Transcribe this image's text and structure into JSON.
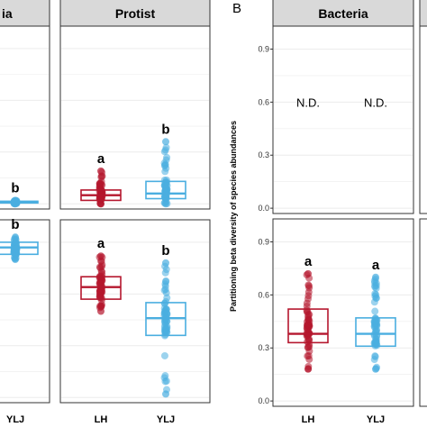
{
  "colors": {
    "LH": "#b5172e",
    "YLJ": "#4aaee0",
    "strip_fill": "#d9d9d9",
    "panel_border": "#333333",
    "grid": "#ececec"
  },
  "panel_letter": "B",
  "y_axis_title": "Partitioning beta diversity of species abundances",
  "not_detected_label": "N.D.",
  "chart_data": [
    {
      "type": "box",
      "facet": "ia",
      "strip_label": "ia",
      "row": "top",
      "groups": [
        {
          "name": "YLJ",
          "label": "YLJ",
          "q1": 0.005,
          "median": 0.01,
          "q3": 0.015,
          "min": 0.0,
          "max": 0.02,
          "sig": "b"
        }
      ]
    },
    {
      "type": "box",
      "facet": "ia",
      "row": "bottom",
      "groups": [
        {
          "name": "YLJ",
          "label": "YLJ",
          "q1": 0.83,
          "median": 0.87,
          "q3": 0.9,
          "min": 0.8,
          "max": 0.93,
          "sig": "b"
        }
      ]
    },
    {
      "type": "box",
      "facet": "Protist",
      "strip_label": "Protist",
      "row": "top",
      "groups": [
        {
          "name": "LH",
          "label": "LH",
          "q1": 0.02,
          "median": 0.05,
          "q3": 0.08,
          "min": 0.0,
          "max": 0.19,
          "sig": "a"
        },
        {
          "name": "YLJ",
          "label": "YLJ",
          "q1": 0.03,
          "median": 0.06,
          "q3": 0.13,
          "min": 0.0,
          "max": 0.36,
          "sig": "b"
        }
      ]
    },
    {
      "type": "box",
      "facet": "Protist",
      "row": "bottom",
      "groups": [
        {
          "name": "LH",
          "label": "LH",
          "q1": 0.57,
          "median": 0.64,
          "q3": 0.7,
          "min": 0.5,
          "max": 0.82,
          "sig": "a"
        },
        {
          "name": "YLJ",
          "label": "YLJ",
          "q1": 0.36,
          "median": 0.46,
          "q3": 0.55,
          "min": 0.02,
          "max": 0.78,
          "sig": "b"
        }
      ]
    },
    {
      "type": "box",
      "facet": "Bacteria",
      "strip_label": "Bacteria",
      "row": "top",
      "ylim": [
        -0.03,
        1.03
      ],
      "yticks": [
        0.0,
        0.3,
        0.6,
        0.9
      ],
      "groups": [
        {
          "name": "LH",
          "label": "LH",
          "not_detected": true
        },
        {
          "name": "YLJ",
          "label": "YLJ",
          "not_detected": true
        }
      ]
    },
    {
      "type": "box",
      "facet": "Bacteria",
      "row": "bottom",
      "ylim": [
        -0.03,
        1.03
      ],
      "yticks": [
        0.0,
        0.3,
        0.6,
        0.9
      ],
      "groups": [
        {
          "name": "LH",
          "label": "LH",
          "q1": 0.33,
          "median": 0.38,
          "q3": 0.52,
          "min": 0.18,
          "max": 0.72,
          "sig": "a"
        },
        {
          "name": "YLJ",
          "label": "YLJ",
          "q1": 0.31,
          "median": 0.38,
          "q3": 0.47,
          "min": 0.18,
          "max": 0.7,
          "sig": "a"
        }
      ]
    }
  ]
}
